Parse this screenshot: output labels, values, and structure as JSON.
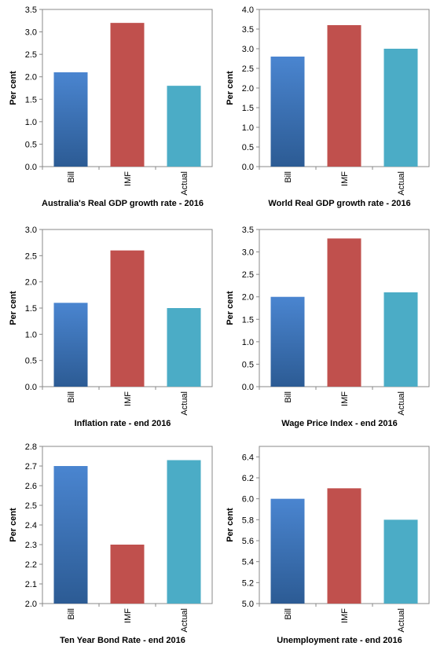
{
  "chart_data": [
    {
      "type": "bar",
      "title": "Australia's Real GDP growth rate - 2016",
      "ylabel": "Per cent",
      "categories": [
        "Bill",
        "IMF",
        "Actual"
      ],
      "values": [
        2.1,
        3.2,
        1.8
      ],
      "ylim": [
        0.0,
        3.5
      ],
      "yticks": [
        "0.0",
        "0.5",
        "1.0",
        "1.5",
        "2.0",
        "2.5",
        "3.0",
        "3.5"
      ],
      "grid": false,
      "legend": "none",
      "colors": [
        "#3f78c0",
        "#c0504d",
        "#4bacc6"
      ]
    },
    {
      "type": "bar",
      "title": "World  Real GDP growth rate - 2016",
      "ylabel": "Per cent",
      "categories": [
        "Bill",
        "IMF",
        "Actual"
      ],
      "values": [
        2.8,
        3.6,
        3.0
      ],
      "ylim": [
        0.0,
        4.0
      ],
      "yticks": [
        "0.0",
        "0.5",
        "1.0",
        "1.5",
        "2.0",
        "2.5",
        "3.0",
        "3.5",
        "4.0"
      ],
      "grid": false,
      "legend": "none",
      "colors": [
        "#3f78c0",
        "#c0504d",
        "#4bacc6"
      ]
    },
    {
      "type": "bar",
      "title": "Inflation rate - end 2016",
      "ylabel": "Per cent",
      "categories": [
        "Bill",
        "IMF",
        "Actual"
      ],
      "values": [
        1.6,
        2.6,
        1.5
      ],
      "ylim": [
        0.0,
        3.0
      ],
      "yticks": [
        "0.0",
        "0.5",
        "1.0",
        "1.5",
        "2.0",
        "2.5",
        "3.0"
      ],
      "grid": false,
      "legend": "none",
      "colors": [
        "#3f78c0",
        "#c0504d",
        "#4bacc6"
      ]
    },
    {
      "type": "bar",
      "title": "Wage Price Index - end 2016",
      "ylabel": "Per cent",
      "categories": [
        "Bill",
        "IMF",
        "Actual"
      ],
      "values": [
        2.0,
        3.3,
        2.1
      ],
      "ylim": [
        0.0,
        3.5
      ],
      "yticks": [
        "0.0",
        "0.5",
        "1.0",
        "1.5",
        "2.0",
        "2.5",
        "3.0",
        "3.5"
      ],
      "grid": false,
      "legend": "none",
      "colors": [
        "#3f78c0",
        "#c0504d",
        "#4bacc6"
      ]
    },
    {
      "type": "bar",
      "title": "Ten Year Bond Rate - end 2016",
      "ylabel": "Per cent",
      "categories": [
        "Bill",
        "IMF",
        "Actual"
      ],
      "values": [
        2.7,
        2.3,
        2.73
      ],
      "ylim": [
        2.0,
        2.8
      ],
      "yticks": [
        "2.0",
        "2.1",
        "2.2",
        "2.3",
        "2.4",
        "2.5",
        "2.6",
        "2.7",
        "2.8"
      ],
      "grid": false,
      "legend": "none",
      "colors": [
        "#3f78c0",
        "#c0504d",
        "#4bacc6"
      ]
    },
    {
      "type": "bar",
      "title": "Unemployment rate - end 2016",
      "ylabel": "Per cent",
      "categories": [
        "Bill",
        "IMF",
        "Actual"
      ],
      "values": [
        6.0,
        6.1,
        5.8
      ],
      "ylim": [
        5.0,
        6.5
      ],
      "yticks": [
        "5.0",
        "5.2",
        "5.4",
        "5.6",
        "5.8",
        "6.0",
        "6.2",
        "6.4"
      ],
      "yticks_max": 6.4,
      "grid": false,
      "legend": "none",
      "colors": [
        "#3f78c0",
        "#c0504d",
        "#4bacc6"
      ]
    }
  ]
}
